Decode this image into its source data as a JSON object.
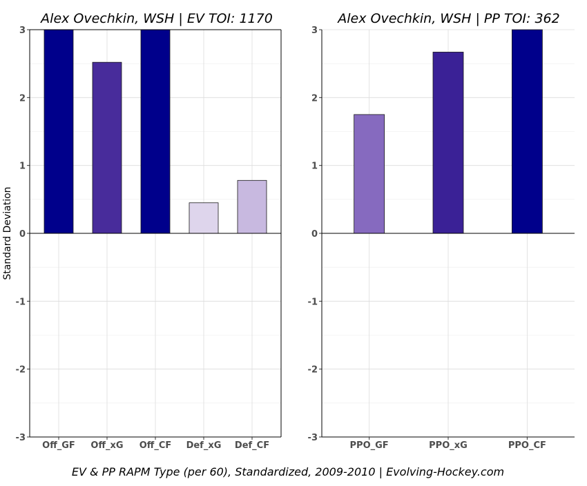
{
  "caption": "EV & PP RAPM Type (per 60), Standardized, 2009-2010    |    Evolving-Hockey.com",
  "ylabel": "Standard Deviation",
  "chart_data": [
    {
      "type": "bar",
      "title": "Alex Ovechkin, WSH  |  EV TOI: 1170",
      "categories": [
        "Off_GF",
        "Off_xG",
        "Off_CF",
        "Def_xG",
        "Def_CF"
      ],
      "values": [
        3.0,
        2.52,
        3.0,
        0.45,
        0.78
      ],
      "colors": [
        "#00008b",
        "#482c9b",
        "#00008b",
        "#ded5ec",
        "#c8b9e0"
      ],
      "ylim": [
        -3,
        3
      ],
      "yticks": [
        -3,
        -2,
        -1,
        0,
        1,
        2,
        3
      ],
      "ylabel": "Standard Deviation",
      "grid": true
    },
    {
      "type": "bar",
      "title": "Alex Ovechkin, WSH  |  PP TOI: 362",
      "categories": [
        "PPO_GF",
        "PPO_xG",
        "PPO_CF"
      ],
      "values": [
        1.75,
        2.67,
        3.0
      ],
      "colors": [
        "#866abf",
        "#3a2196",
        "#00008b"
      ],
      "ylim": [
        -3,
        3
      ],
      "yticks": [
        -3,
        -2,
        -1,
        0,
        1,
        2,
        3
      ],
      "grid": true
    }
  ]
}
